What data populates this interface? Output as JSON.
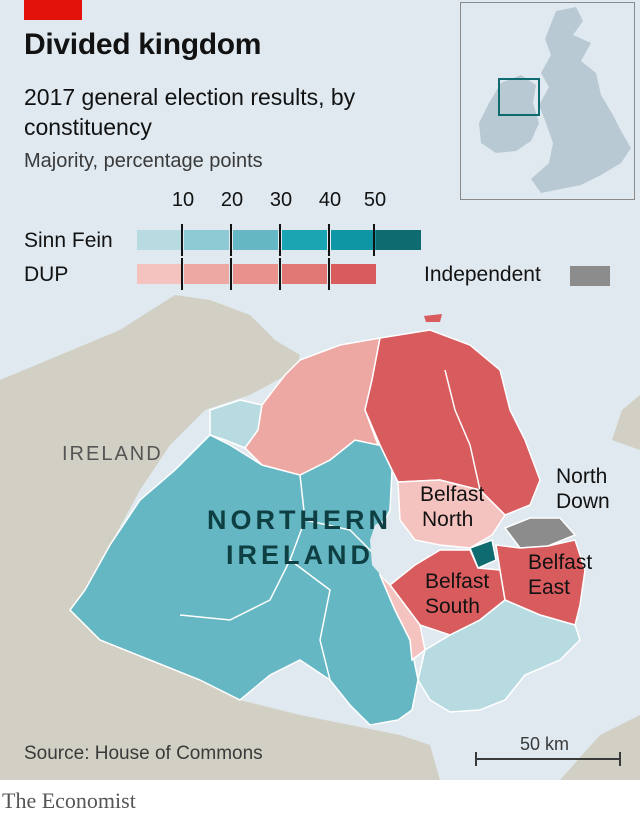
{
  "header": {
    "title": "Divided kingdom",
    "subtitle": "2017 general election results, by constituency",
    "unit": "Majority, percentage points"
  },
  "legend": {
    "ticks": [
      "10",
      "20",
      "30",
      "40",
      "50"
    ],
    "sinn_fein": {
      "label": "Sinn Fein",
      "colors": [
        "#b8dbe2",
        "#8ecad3",
        "#65b7c3",
        "#1ba5b3",
        "#0e96a5",
        "#0e6b70"
      ]
    },
    "dup": {
      "label": "DUP",
      "colors": [
        "#f4c2bf",
        "#eea8a4",
        "#e8918d",
        "#e07775",
        "#d85b5e"
      ]
    },
    "independent": {
      "label": "Independent",
      "color": "#8c8c8c"
    }
  },
  "colors": {
    "accent": "#e3120b",
    "land": "#d2d0c4",
    "sea": "#dfe9ef",
    "inset_land": "#b9c9d3"
  },
  "map": {
    "labels": {
      "ireland": "IRELAND",
      "northern_ireland_1": "NORTHERN",
      "northern_ireland_2": "IRELAND",
      "belfast_north_1": "Belfast",
      "belfast_north_2": "North",
      "belfast_south_1": "Belfast",
      "belfast_south_2": "South",
      "belfast_east_1": "Belfast",
      "belfast_east_2": "East",
      "north_down_1": "North",
      "north_down_2": "Down"
    },
    "scale_label": "50 km"
  },
  "footer": {
    "source": "Source: House of Commons",
    "publisher": "The Economist"
  }
}
